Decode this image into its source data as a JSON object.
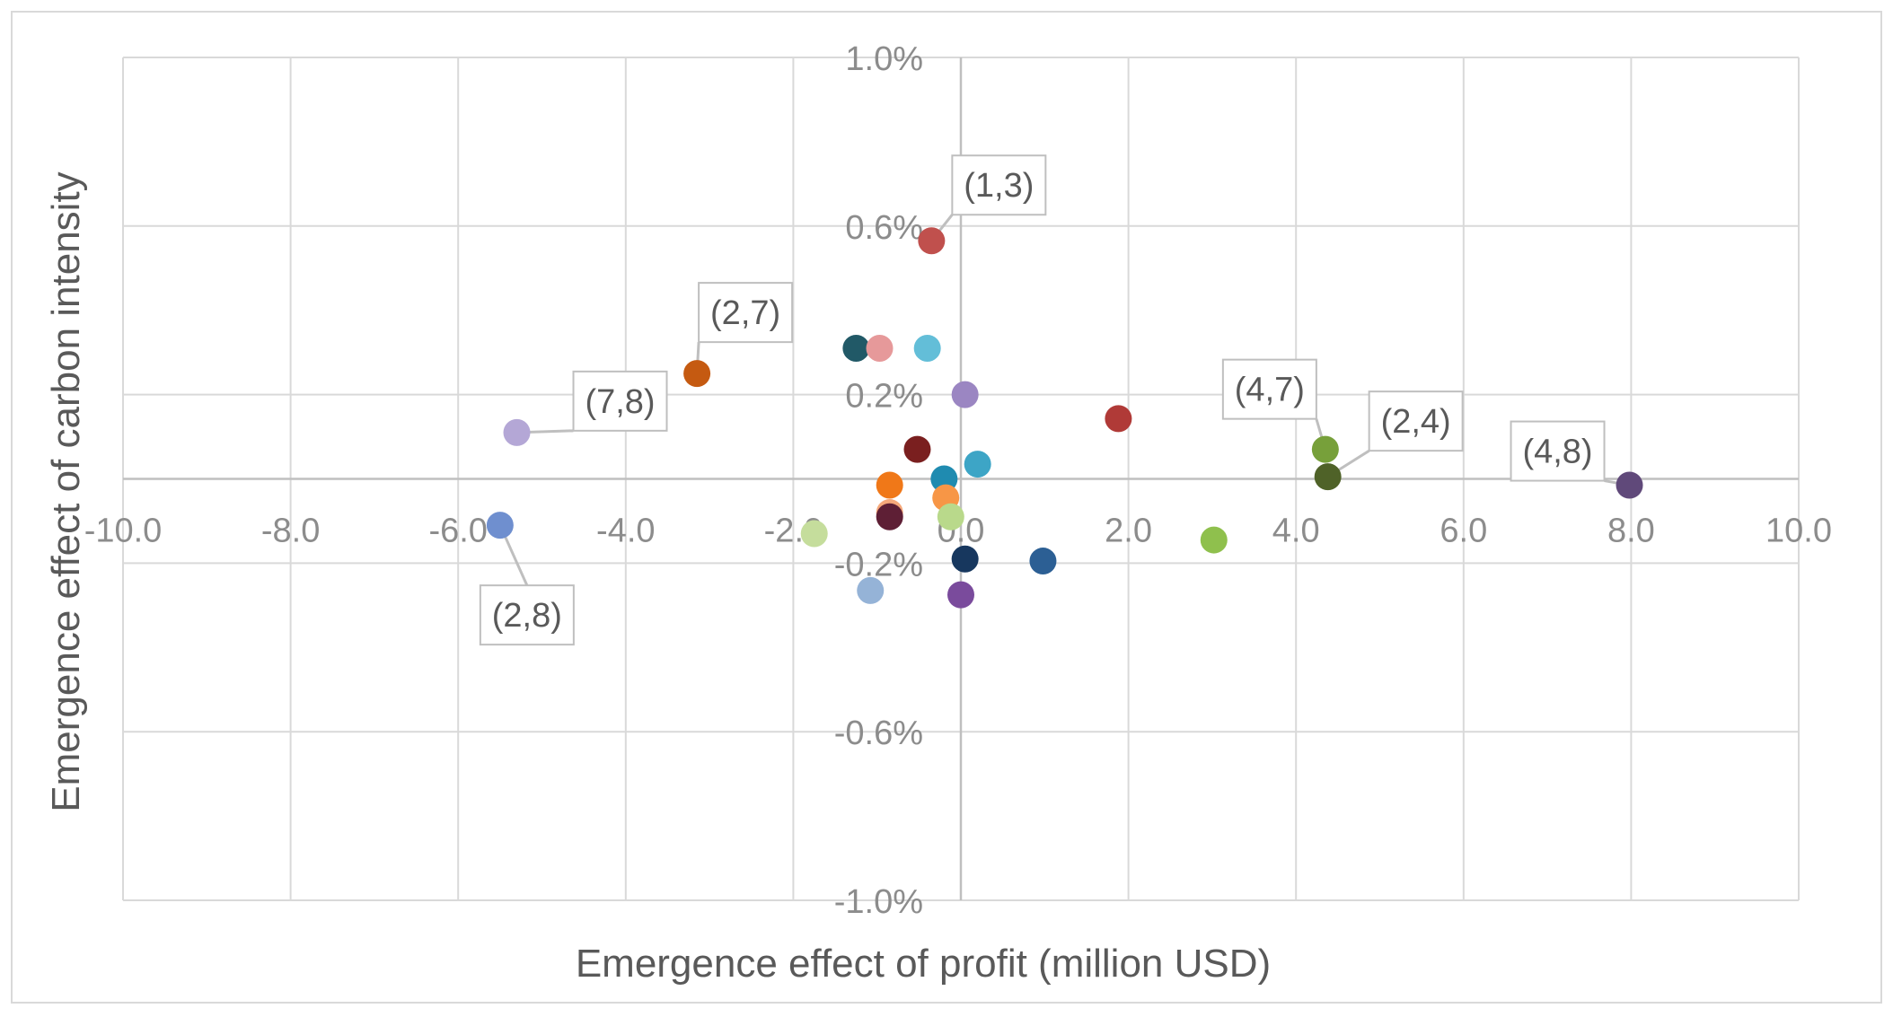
{
  "chart_data": {
    "type": "scatter",
    "xlabel": "Emergence effect of profit (million USD)",
    "ylabel": "Emergence effect of carbon intensity",
    "xlim": [
      -10,
      10
    ],
    "ylim": [
      -1.0,
      1.0
    ],
    "x_ticks": [
      {
        "value": -10,
        "label": "-10.0"
      },
      {
        "value": -8,
        "label": "-8.0"
      },
      {
        "value": -6,
        "label": "-6.0"
      },
      {
        "value": -4,
        "label": "-4.0"
      },
      {
        "value": -2,
        "label": "-2.0"
      },
      {
        "value": 0,
        "label": "0.0"
      },
      {
        "value": 2,
        "label": "2.0"
      },
      {
        "value": 4,
        "label": "4.0"
      },
      {
        "value": 6,
        "label": "6.0"
      },
      {
        "value": 8,
        "label": "8.0"
      },
      {
        "value": 10,
        "label": "10.0"
      }
    ],
    "y_ticks": [
      {
        "value": 1.0,
        "label": "1.0%"
      },
      {
        "value": 0.6,
        "label": "0.6%"
      },
      {
        "value": 0.2,
        "label": "0.2%"
      },
      {
        "value": -0.2,
        "label": "-0.2%"
      },
      {
        "value": -0.6,
        "label": "-0.6%"
      },
      {
        "value": -1.0,
        "label": "-1.0%"
      }
    ],
    "grid": true,
    "legend": "none",
    "points": [
      {
        "x": -0.35,
        "y": 0.565,
        "color": "#c0504d",
        "label": "(1,3)"
      },
      {
        "x": -3.15,
        "y": 0.25,
        "color": "#c55a11",
        "label": "(2,7)"
      },
      {
        "x": -5.3,
        "y": 0.11,
        "color": "#b4a7d6",
        "label": "(7,8)"
      },
      {
        "x": -5.5,
        "y": -0.11,
        "color": "#6f8fcf",
        "label": "(2,8)"
      },
      {
        "x": 4.35,
        "y": 0.07,
        "color": "#77a03a",
        "label": "(4,7)"
      },
      {
        "x": 4.38,
        "y": 0.005,
        "color": "#4f6228",
        "label": "(2,4)"
      },
      {
        "x": 7.98,
        "y": -0.015,
        "color": "#60497a",
        "label": "(4,8)"
      },
      {
        "x": -1.25,
        "y": 0.31,
        "color": "#215967",
        "label": ""
      },
      {
        "x": -0.97,
        "y": 0.31,
        "color": "#e6999a",
        "label": ""
      },
      {
        "x": -0.4,
        "y": 0.31,
        "color": "#63bed8",
        "label": ""
      },
      {
        "x": 0.05,
        "y": 0.2,
        "color": "#9b86c2",
        "label": ""
      },
      {
        "x": 1.88,
        "y": 0.143,
        "color": "#b03a37",
        "label": ""
      },
      {
        "x": -0.52,
        "y": 0.07,
        "color": "#7a1f1f",
        "label": ""
      },
      {
        "x": 0.2,
        "y": 0.035,
        "color": "#3da5c6",
        "label": ""
      },
      {
        "x": -0.2,
        "y": 0.0,
        "color": "#1f8bb0",
        "label": ""
      },
      {
        "x": -0.85,
        "y": -0.015,
        "color": "#f07818",
        "label": ""
      },
      {
        "x": -0.18,
        "y": -0.045,
        "color": "#f79646",
        "label": ""
      },
      {
        "x": -0.85,
        "y": -0.08,
        "color": "#f6a97b",
        "label": ""
      },
      {
        "x": -0.85,
        "y": -0.09,
        "color": "#5e1f35",
        "label": ""
      },
      {
        "x": -0.12,
        "y": -0.09,
        "color": "#b9d98b",
        "label": ""
      },
      {
        "x": -1.75,
        "y": -0.13,
        "color": "#c5dd9c",
        "label": ""
      },
      {
        "x": 3.02,
        "y": -0.145,
        "color": "#8fc04d",
        "label": ""
      },
      {
        "x": 0.05,
        "y": -0.19,
        "color": "#17375e",
        "label": ""
      },
      {
        "x": 0.98,
        "y": -0.195,
        "color": "#2c5f94",
        "label": ""
      },
      {
        "x": -1.08,
        "y": -0.265,
        "color": "#95b3d7",
        "label": ""
      },
      {
        "x": 0.0,
        "y": -0.275,
        "color": "#7a4b9c",
        "label": ""
      }
    ]
  }
}
